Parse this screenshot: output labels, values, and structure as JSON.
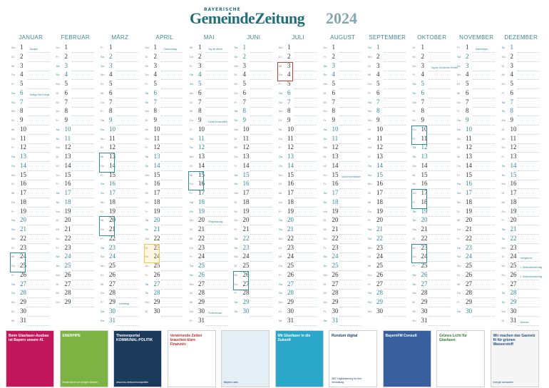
{
  "header": {
    "brand_small": "BAYERISCHE",
    "brand_main": "GemeindeZeitung",
    "year": "2024"
  },
  "months": [
    {
      "name": "JANUAR",
      "start": 1,
      "days": 31
    },
    {
      "name": "FEBRUAR",
      "start": 4,
      "days": 29
    },
    {
      "name": "MÄRZ",
      "start": 5,
      "days": 31
    },
    {
      "name": "APRIL",
      "start": 1,
      "days": 30
    },
    {
      "name": "MAI",
      "start": 3,
      "days": 31
    },
    {
      "name": "JUNI",
      "start": 6,
      "days": 30
    },
    {
      "name": "JULI",
      "start": 1,
      "days": 31
    },
    {
      "name": "AUGUST",
      "start": 4,
      "days": 31
    },
    {
      "name": "SEPTEMBER",
      "start": 0,
      "days": 30
    },
    {
      "name": "OKTOBER",
      "start": 2,
      "days": 31
    },
    {
      "name": "NOVEMBER",
      "start": 5,
      "days": 30
    },
    {
      "name": "DEZEMBER",
      "start": 0,
      "days": 31
    }
  ],
  "weekdays": [
    "So",
    "Mo",
    "Di",
    "Mi",
    "Do",
    "Fr",
    "Sa"
  ],
  "notes": [
    {
      "m": 0,
      "d": 1,
      "text": "Neujahr"
    },
    {
      "m": 0,
      "d": 6,
      "text": "Heilige Drei Könige"
    },
    {
      "m": 2,
      "d": 29,
      "text": "Karfreitag"
    },
    {
      "m": 3,
      "d": 1,
      "text": "Ostermontag"
    },
    {
      "m": 4,
      "d": 1,
      "text": "Tag der Arbeit"
    },
    {
      "m": 4,
      "d": 9,
      "text": "Christi Himmelfahrt"
    },
    {
      "m": 4,
      "d": 20,
      "text": "Pfingstmontag"
    },
    {
      "m": 4,
      "d": 30,
      "text": "Fronleichnam"
    },
    {
      "m": 7,
      "d": 15,
      "text": "Mariä Himmelfahrt"
    },
    {
      "m": 9,
      "d": 3,
      "text": "Tag der Deutschen Einheit"
    },
    {
      "m": 10,
      "d": 1,
      "text": "Allerheiligen"
    },
    {
      "m": 11,
      "d": 24,
      "text": "Heiligabend"
    },
    {
      "m": 11,
      "d": 25,
      "text": "1. Weihnachtsfeiertag"
    },
    {
      "m": 11,
      "d": 26,
      "text": "2. Weihnachtsfeiertag"
    },
    {
      "m": 11,
      "d": 31,
      "text": "Silvester"
    }
  ],
  "ads": [
    {
      "title": "Beim Glasfaser-Ausbau ist Bayern unsere #1",
      "sub": "",
      "bg": "#c2185b",
      "fg": "#ffffff"
    },
    {
      "title": "ENERPIPE",
      "sub": "Heute schon an morgen denken",
      "bg": "#7cb342",
      "fg": "#ffffff"
    },
    {
      "title": "Themenportal KOMMUNAL-POLITIK",
      "sub": "www.hss.de/kommunalpolitik",
      "bg": "#1b3a5c",
      "fg": "#ffffff"
    },
    {
      "title": "Verwirrende Zeiten brauchen klare Finanzen.",
      "sub": "",
      "bg": "#ffffff",
      "fg": "#c62828"
    },
    {
      "title": "",
      "sub": "Bayern Labo",
      "bg": "#e3eef5",
      "fg": "#1c3d6e"
    },
    {
      "title": "Mit Glasfaser in die Zukunft",
      "sub": "",
      "bg": "#2aa6c8",
      "fg": "#ffffff"
    },
    {
      "title": "Rundum digital",
      "sub": "360° Digitalisierung für Ihre Verwaltung",
      "bg": "#ffffff",
      "fg": "#1c3d6e"
    },
    {
      "title": "BayernFM Consult",
      "sub": "",
      "bg": "#3a5f9e",
      "fg": "#ffffff"
    },
    {
      "title": "Grünes Licht für Glasfaser.",
      "sub": "",
      "bg": "#ffffff",
      "fg": "#2e7d32"
    },
    {
      "title": "Wir machen das Gasnetz fit für grünen Wasserstoff",
      "sub": "energie schwaben",
      "bg": "#f5f5f5",
      "fg": "#1c4e8a"
    }
  ]
}
